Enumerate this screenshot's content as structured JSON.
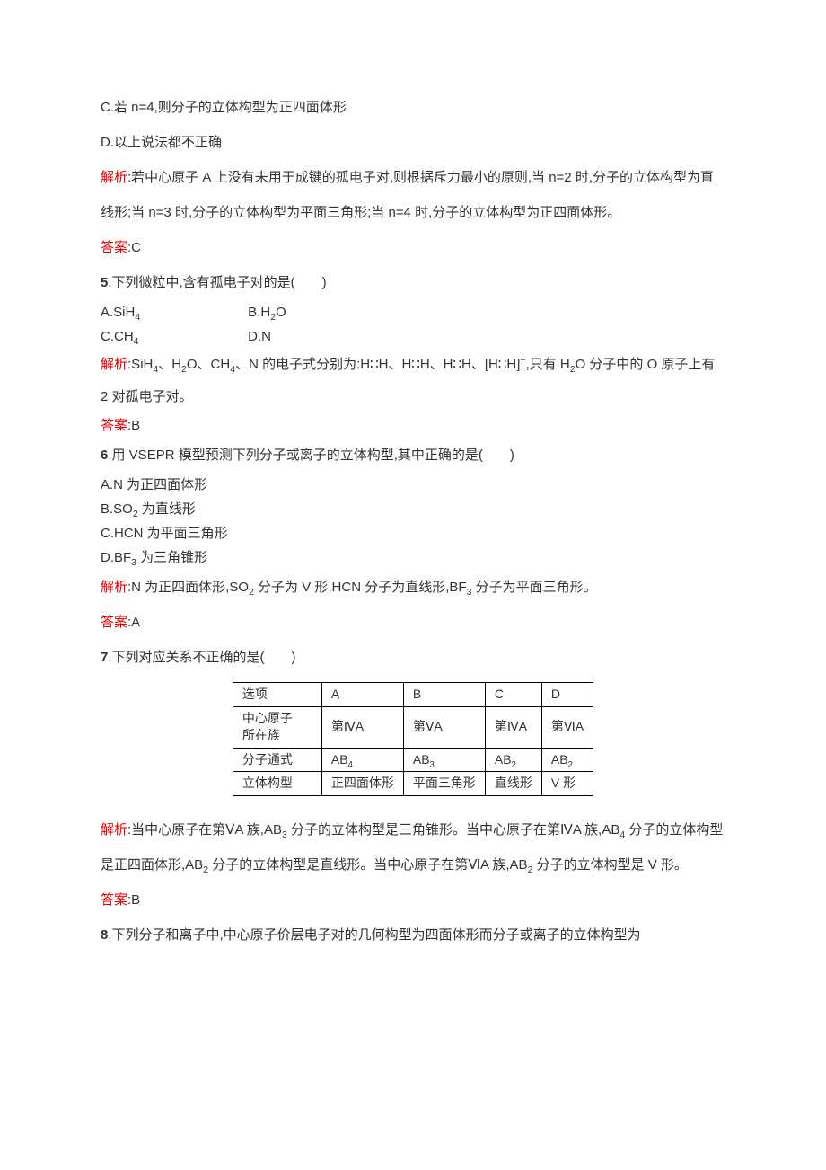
{
  "top": {
    "optC": "C.若 n=4,则分子的立体构型为正四面体形",
    "optD": "D.以上说法都不正确",
    "jiexi_label": "解析",
    "jiexi": ":若中心原子 A 上没有未用于成键的孤电子对,则根据斥力最小的原则,当 n=2 时,分子的立体构型为直线形;当 n=3 时,分子的立体构型为平面三角形;当 n=4 时,分子的立体构型为正四面体形。",
    "ans_label": "答案",
    "ans": ":C"
  },
  "q5": {
    "title_num": "5",
    "title": ".下列微粒中,含有孤电子对的是(　　)",
    "A_pre": "A.SiH",
    "A_sub": "4",
    "B_pre": "B.H",
    "B_sub": "2",
    "B_post": "O",
    "C_pre": "C.CH",
    "C_sub": "4",
    "D": "D.N",
    "jiexi_label": "解析",
    "jiexi_p1": ":SiH",
    "jiexi_s1": "4",
    "jiexi_p2": "、H",
    "jiexi_s2": "2",
    "jiexi_p3": "O、CH",
    "jiexi_s3": "4",
    "jiexi_p4": "、N 的电子式分别为:H∷H、H∷H、H∷H、[H∷H]",
    "jiexi_sup": "+",
    "jiexi_p5": ",只有 H",
    "jiexi_s5": "2",
    "jiexi_p6": "O 分子中的 O 原子上有 2 对孤电子对。",
    "ans_label": "答案",
    "ans": ":B"
  },
  "q6": {
    "title_num": "6",
    "title": ".用 VSEPR 模型预测下列分子或离子的立体构型,其中正确的是(　　)",
    "A": "A.N 为正四面体形",
    "B_pre": "B.SO",
    "B_sub": "2",
    "B_post": " 为直线形",
    "C": "C.HCN 为平面三角形",
    "D_pre": "D.BF",
    "D_sub": "3",
    "D_post": " 为三角锥形",
    "jiexi_label": "解析",
    "jiexi_p1": ":N 为正四面体形,SO",
    "jiexi_s1": "2",
    "jiexi_p2": " 分子为 V 形,HCN 分子为直线形,BF",
    "jiexi_s2": "3",
    "jiexi_p3": " 分子为平面三角形。",
    "ans_label": "答案",
    "ans": ":A"
  },
  "q7": {
    "title_num": "7",
    "title": ".下列对应关系不正确的是(　　)",
    "row0": {
      "h": "选项",
      "a": "A",
      "b": "B",
      "c": "C",
      "d": "D"
    },
    "row1": {
      "h1": "中心原子",
      "h2": "所在族",
      "a": "第ⅣA",
      "b": "第ⅤA",
      "c": "第ⅣA",
      "d": "第ⅥA"
    },
    "row2": {
      "h": "分子通式",
      "a_pre": "AB",
      "a_sub": "4",
      "b_pre": "AB",
      "b_sub": "3",
      "c_pre": "AB",
      "c_sub": "2",
      "d_pre": "AB",
      "d_sub": "2"
    },
    "row3": {
      "h": "立体构型",
      "a": "正四面体形",
      "b": "平面三角形",
      "c": "直线形",
      "d": "V 形"
    },
    "jiexi_label": "解析",
    "jiexi_p1": ":当中心原子在第ⅤA 族,AB",
    "jiexi_s1": "3",
    "jiexi_p2": " 分子的立体构型是三角锥形。当中心原子在第ⅣA 族,AB",
    "jiexi_s2": "4",
    "jiexi_p3": " 分子的立体构型是正四面体形,AB",
    "jiexi_s3": "2",
    "jiexi_p4": " 分子的立体构型是直线形。当中心原子在第ⅥA 族,AB",
    "jiexi_s4": "2",
    "jiexi_p5": " 分子的立体构型是 V 形。",
    "ans_label": "答案",
    "ans": ":B"
  },
  "q8": {
    "title_num": "8",
    "title": ".下列分子和离子中,中心原子价层电子对的几何构型为四面体形而分子或离子的立体构型为"
  },
  "colors": {
    "red": "#ed0000",
    "text": "#333333",
    "bg": "#ffffff",
    "border": "#000000"
  }
}
